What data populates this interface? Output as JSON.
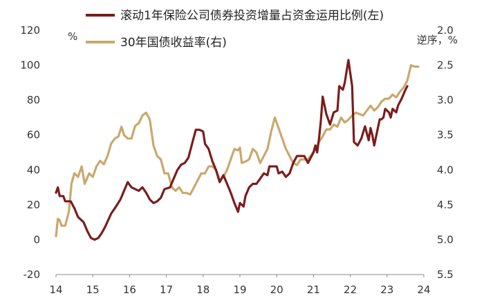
{
  "chart_data": {
    "type": "line",
    "legend_position": "top",
    "grid": false,
    "x": {
      "categories": [
        "14",
        "15",
        "16",
        "17",
        "18",
        "19",
        "20",
        "21",
        "22",
        "23",
        "24"
      ],
      "range": [
        2014,
        2024
      ]
    },
    "y_left": {
      "unit": "%",
      "range": [
        -20,
        120
      ],
      "ticks": [
        "120",
        "100",
        "80",
        "60",
        "40",
        "20",
        "0",
        "-20"
      ]
    },
    "y_right": {
      "unit": "逆序，%",
      "inverted": true,
      "range": [
        2.0,
        5.5
      ],
      "ticks": [
        "2.0",
        "2.5",
        "3.0",
        "3.5",
        "4.0",
        "4.5",
        "5.0",
        "5.5"
      ]
    },
    "series": [
      {
        "name": "滚动1年保险公司债券投资增量占资金运用比例(左)",
        "axis": "left",
        "color": "#7b1c1c",
        "points": [
          [
            2014.0,
            27
          ],
          [
            2014.05,
            30
          ],
          [
            2014.1,
            25
          ],
          [
            2014.2,
            25
          ],
          [
            2014.25,
            22
          ],
          [
            2014.4,
            22
          ],
          [
            2014.5,
            18
          ],
          [
            2014.6,
            13
          ],
          [
            2014.75,
            10
          ],
          [
            2014.85,
            5
          ],
          [
            2014.95,
            1
          ],
          [
            2015.05,
            0
          ],
          [
            2015.15,
            1
          ],
          [
            2015.25,
            4
          ],
          [
            2015.35,
            8
          ],
          [
            2015.5,
            15
          ],
          [
            2015.6,
            18
          ],
          [
            2015.75,
            23
          ],
          [
            2015.85,
            28
          ],
          [
            2015.95,
            33
          ],
          [
            2016.05,
            30
          ],
          [
            2016.15,
            29
          ],
          [
            2016.25,
            28
          ],
          [
            2016.35,
            30
          ],
          [
            2016.45,
            27
          ],
          [
            2016.55,
            23
          ],
          [
            2016.65,
            21
          ],
          [
            2016.75,
            22
          ],
          [
            2016.85,
            24
          ],
          [
            2016.95,
            29
          ],
          [
            2017.1,
            30
          ],
          [
            2017.2,
            35
          ],
          [
            2017.3,
            40
          ],
          [
            2017.4,
            43
          ],
          [
            2017.5,
            44
          ],
          [
            2017.6,
            47
          ],
          [
            2017.7,
            55
          ],
          [
            2017.8,
            63
          ],
          [
            2017.9,
            63
          ],
          [
            2018.0,
            62
          ],
          [
            2018.05,
            55
          ],
          [
            2018.15,
            52
          ],
          [
            2018.25,
            45
          ],
          [
            2018.35,
            40
          ],
          [
            2018.45,
            33
          ],
          [
            2018.55,
            37
          ],
          [
            2018.65,
            32
          ],
          [
            2018.75,
            27
          ],
          [
            2018.85,
            21
          ],
          [
            2018.95,
            16
          ],
          [
            2019.0,
            21
          ],
          [
            2019.1,
            19
          ],
          [
            2019.15,
            25
          ],
          [
            2019.25,
            30
          ],
          [
            2019.35,
            32
          ],
          [
            2019.45,
            32
          ],
          [
            2019.55,
            35
          ],
          [
            2019.65,
            38
          ],
          [
            2019.75,
            37
          ],
          [
            2019.8,
            42
          ],
          [
            2019.9,
            42
          ],
          [
            2020.0,
            42
          ],
          [
            2020.05,
            38
          ],
          [
            2020.15,
            39
          ],
          [
            2020.25,
            36
          ],
          [
            2020.35,
            38
          ],
          [
            2020.45,
            44
          ],
          [
            2020.55,
            48
          ],
          [
            2020.65,
            48
          ],
          [
            2020.75,
            48
          ],
          [
            2020.85,
            44
          ],
          [
            2020.95,
            48
          ],
          [
            2021.0,
            50
          ],
          [
            2021.05,
            54
          ],
          [
            2021.1,
            50
          ],
          [
            2021.15,
            58
          ],
          [
            2021.2,
            68
          ],
          [
            2021.25,
            82
          ],
          [
            2021.35,
            72
          ],
          [
            2021.45,
            66
          ],
          [
            2021.55,
            73
          ],
          [
            2021.65,
            74
          ],
          [
            2021.7,
            88
          ],
          [
            2021.8,
            86
          ],
          [
            2021.85,
            90
          ],
          [
            2021.95,
            103
          ],
          [
            2022.05,
            88
          ],
          [
            2022.1,
            56
          ],
          [
            2022.2,
            54
          ],
          [
            2022.3,
            58
          ],
          [
            2022.4,
            65
          ],
          [
            2022.5,
            57
          ],
          [
            2022.55,
            64
          ],
          [
            2022.6,
            60
          ],
          [
            2022.65,
            54
          ],
          [
            2022.75,
            64
          ],
          [
            2022.8,
            69
          ],
          [
            2022.85,
            69
          ],
          [
            2022.9,
            70
          ],
          [
            2022.95,
            75
          ],
          [
            2023.05,
            73
          ],
          [
            2023.1,
            70
          ],
          [
            2023.15,
            75
          ],
          [
            2023.25,
            73
          ],
          [
            2023.3,
            77
          ],
          [
            2023.4,
            81
          ],
          [
            2023.5,
            86
          ],
          [
            2023.55,
            88
          ]
        ]
      },
      {
        "name": "30年国债收益率(右)",
        "axis": "right",
        "color": "#c9a86c",
        "points": [
          [
            2014.0,
            4.95
          ],
          [
            2014.05,
            4.7
          ],
          [
            2014.1,
            4.72
          ],
          [
            2014.15,
            4.8
          ],
          [
            2014.25,
            4.8
          ],
          [
            2014.35,
            4.6
          ],
          [
            2014.42,
            4.2
          ],
          [
            2014.5,
            4.05
          ],
          [
            2014.6,
            4.1
          ],
          [
            2014.7,
            3.95
          ],
          [
            2014.78,
            4.2
          ],
          [
            2014.9,
            4.05
          ],
          [
            2015.0,
            4.1
          ],
          [
            2015.1,
            3.95
          ],
          [
            2015.2,
            3.87
          ],
          [
            2015.3,
            3.92
          ],
          [
            2015.4,
            3.8
          ],
          [
            2015.5,
            3.62
          ],
          [
            2015.6,
            3.55
          ],
          [
            2015.7,
            3.52
          ],
          [
            2015.78,
            3.38
          ],
          [
            2015.85,
            3.5
          ],
          [
            2015.95,
            3.55
          ],
          [
            2016.05,
            3.55
          ],
          [
            2016.15,
            3.37
          ],
          [
            2016.25,
            3.33
          ],
          [
            2016.35,
            3.22
          ],
          [
            2016.45,
            3.18
          ],
          [
            2016.55,
            3.28
          ],
          [
            2016.65,
            3.65
          ],
          [
            2016.75,
            3.8
          ],
          [
            2016.85,
            3.85
          ],
          [
            2016.95,
            4.05
          ],
          [
            2017.05,
            4.05
          ],
          [
            2017.15,
            4.25
          ],
          [
            2017.25,
            4.3
          ],
          [
            2017.35,
            4.25
          ],
          [
            2017.45,
            4.33
          ],
          [
            2017.55,
            4.33
          ],
          [
            2017.65,
            4.35
          ],
          [
            2017.75,
            4.25
          ],
          [
            2017.85,
            4.15
          ],
          [
            2017.95,
            4.05
          ],
          [
            2018.05,
            4.05
          ],
          [
            2018.15,
            3.95
          ],
          [
            2018.25,
            3.95
          ],
          [
            2018.35,
            4.0
          ],
          [
            2018.45,
            4.15
          ],
          [
            2018.55,
            4.1
          ],
          [
            2018.65,
            4.0
          ],
          [
            2018.75,
            3.85
          ],
          [
            2018.85,
            3.7
          ],
          [
            2018.95,
            3.72
          ],
          [
            2019.0,
            3.68
          ],
          [
            2019.05,
            3.9
          ],
          [
            2019.15,
            3.88
          ],
          [
            2019.25,
            3.85
          ],
          [
            2019.35,
            3.7
          ],
          [
            2019.45,
            3.75
          ],
          [
            2019.55,
            3.9
          ],
          [
            2019.65,
            3.8
          ],
          [
            2019.75,
            3.7
          ],
          [
            2019.85,
            3.45
          ],
          [
            2019.95,
            3.25
          ],
          [
            2020.05,
            3.4
          ],
          [
            2020.15,
            3.55
          ],
          [
            2020.25,
            3.7
          ],
          [
            2020.35,
            3.8
          ],
          [
            2020.45,
            3.9
          ],
          [
            2020.55,
            3.93
          ],
          [
            2020.65,
            3.85
          ],
          [
            2020.75,
            3.85
          ],
          [
            2020.85,
            3.85
          ],
          [
            2020.95,
            3.78
          ],
          [
            2021.05,
            3.7
          ],
          [
            2021.15,
            3.6
          ],
          [
            2021.25,
            3.52
          ],
          [
            2021.35,
            3.42
          ],
          [
            2021.45,
            3.42
          ],
          [
            2021.55,
            3.35
          ],
          [
            2021.65,
            3.38
          ],
          [
            2021.75,
            3.25
          ],
          [
            2021.85,
            3.32
          ],
          [
            2021.95,
            3.28
          ],
          [
            2022.05,
            3.22
          ],
          [
            2022.15,
            3.18
          ],
          [
            2022.25,
            3.2
          ],
          [
            2022.35,
            3.22
          ],
          [
            2022.45,
            3.15
          ],
          [
            2022.55,
            3.08
          ],
          [
            2022.65,
            3.15
          ],
          [
            2022.75,
            3.1
          ],
          [
            2022.85,
            3.02
          ],
          [
            2022.95,
            2.98
          ],
          [
            2023.05,
            2.98
          ],
          [
            2023.15,
            2.92
          ],
          [
            2023.25,
            2.96
          ],
          [
            2023.35,
            2.88
          ],
          [
            2023.45,
            2.82
          ],
          [
            2023.55,
            2.72
          ],
          [
            2023.65,
            2.5
          ],
          [
            2023.75,
            2.52
          ],
          [
            2023.85,
            2.52
          ]
        ]
      }
    ]
  }
}
